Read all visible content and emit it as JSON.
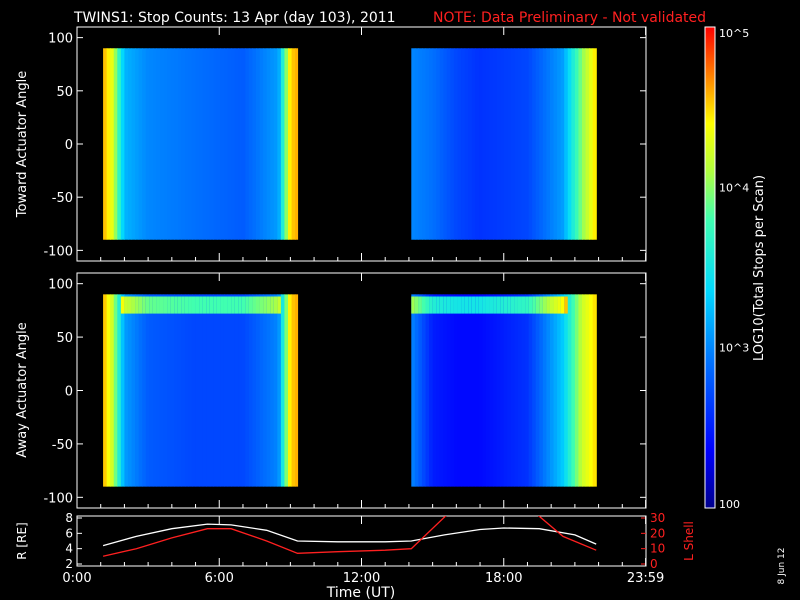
{
  "header": {
    "title": "TWINS1: Stop Counts: 13 Apr (day 103), 2011",
    "note": "NOTE: Data Preliminary - Not validated",
    "note_color": "#ff2020"
  },
  "colorbar": {
    "label": "LOG10(Total Stops per Scan)",
    "ticks": [
      "10^5",
      "10^4",
      "10^3",
      "100"
    ],
    "tick_values": [
      5,
      4,
      3,
      2
    ]
  },
  "side_date": "8 Jun 12",
  "chart_data": [
    {
      "type": "heatmap",
      "ylabel": "Toward Actuator Angle",
      "ylim": [
        -110,
        110
      ],
      "yticks": [
        "100",
        "50",
        "0",
        "-50",
        "-100"
      ],
      "segments": [
        {
          "start_h": 1.1,
          "end_h": 9.3
        },
        {
          "start_h": 14.1,
          "end_h": 21.9
        }
      ],
      "angle_range": [
        -90,
        90
      ],
      "log_counts_profile": [
        {
          "t": 1.1,
          "v": 4.6
        },
        {
          "t": 1.5,
          "v": 4.3
        },
        {
          "t": 2.0,
          "v": 3.2
        },
        {
          "t": 3.0,
          "v": 3.0
        },
        {
          "t": 5.0,
          "v": 2.9
        },
        {
          "t": 7.0,
          "v": 2.8
        },
        {
          "t": 8.5,
          "v": 3.1
        },
        {
          "t": 9.0,
          "v": 4.5
        },
        {
          "t": 9.3,
          "v": 4.6
        },
        {
          "t": 14.1,
          "v": 3.0
        },
        {
          "t": 15.0,
          "v": 2.9
        },
        {
          "t": 16.0,
          "v": 2.7
        },
        {
          "t": 17.0,
          "v": 2.6
        },
        {
          "t": 19.0,
          "v": 2.7
        },
        {
          "t": 20.5,
          "v": 3.1
        },
        {
          "t": 21.3,
          "v": 4.0
        },
        {
          "t": 21.9,
          "v": 4.5
        }
      ]
    },
    {
      "type": "heatmap",
      "ylabel": "Away Actuator Angle",
      "ylim": [
        -110,
        110
      ],
      "yticks": [
        "100",
        "50",
        "0",
        "-50",
        "-100"
      ],
      "segments": [
        {
          "start_h": 1.1,
          "end_h": 9.3
        },
        {
          "start_h": 14.1,
          "end_h": 21.9
        }
      ],
      "angle_range": [
        -90,
        90
      ],
      "log_counts_profile": [
        {
          "t": 1.1,
          "v": 4.6
        },
        {
          "t": 1.5,
          "v": 4.2
        },
        {
          "t": 2.0,
          "v": 3.1
        },
        {
          "t": 3.0,
          "v": 2.8
        },
        {
          "t": 5.0,
          "v": 2.7
        },
        {
          "t": 7.0,
          "v": 2.7
        },
        {
          "t": 8.5,
          "v": 3.0
        },
        {
          "t": 9.0,
          "v": 4.5
        },
        {
          "t": 9.3,
          "v": 4.6
        },
        {
          "t": 14.1,
          "v": 3.0
        },
        {
          "t": 15.0,
          "v": 2.5
        },
        {
          "t": 16.0,
          "v": 2.4
        },
        {
          "t": 17.0,
          "v": 2.4
        },
        {
          "t": 19.0,
          "v": 2.6
        },
        {
          "t": 20.5,
          "v": 3.3
        },
        {
          "t": 21.3,
          "v": 4.2
        },
        {
          "t": 21.9,
          "v": 4.5
        }
      ],
      "high_band_angle": 80
    },
    {
      "type": "line",
      "ylabel": "R [RE]",
      "y2label": "L Shell",
      "ylim": [
        2,
        8
      ],
      "y2lim": [
        0,
        30
      ],
      "yticks": [
        "8",
        "6",
        "4",
        "2"
      ],
      "y2ticks": [
        "30",
        "20",
        "10",
        "0"
      ],
      "series": [
        {
          "color": "#ffffff",
          "axis": "left",
          "x": [
            1.1,
            2.5,
            4.0,
            5.5,
            6.5,
            8.0,
            9.3,
            11.0,
            13.0,
            14.1,
            15.5,
            17.0,
            18.0,
            19.5,
            21.0,
            21.9
          ],
          "y": [
            4.4,
            5.6,
            6.6,
            7.2,
            7.1,
            6.4,
            5.0,
            4.9,
            4.9,
            5.0,
            5.8,
            6.5,
            6.7,
            6.6,
            5.8,
            4.6
          ]
        },
        {
          "color": "#ff2020",
          "axis": "right",
          "x": [
            1.1,
            2.5,
            4.0,
            5.5,
            6.5,
            8.0,
            9.3,
            11.0,
            13.0,
            14.1,
            15.8,
            19.2,
            20.5,
            21.9
          ],
          "y": [
            5.0,
            10.0,
            17.0,
            23.0,
            23.0,
            15.0,
            7.0,
            8.0,
            9.0,
            10.0,
            35.0,
            35.0,
            18.0,
            9.0
          ]
        }
      ]
    }
  ],
  "x_axis": {
    "label": "Time (UT)",
    "xlim": [
      0,
      24
    ],
    "ticks": [
      {
        "h": 0,
        "label": "0:00"
      },
      {
        "h": 6,
        "label": "6:00"
      },
      {
        "h": 12,
        "label": "12:00"
      },
      {
        "h": 18,
        "label": "18:00"
      },
      {
        "h": 23.983,
        "label": "23:59"
      }
    ]
  }
}
